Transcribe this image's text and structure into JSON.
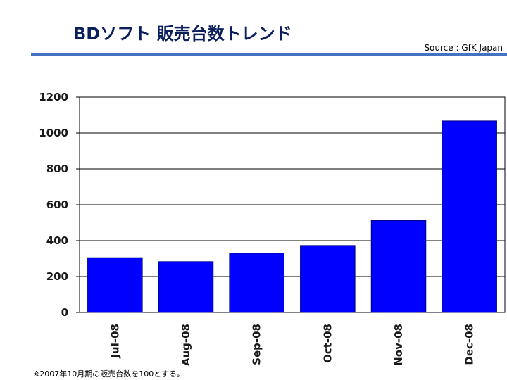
{
  "header": {
    "title": "BDソフト 販売台数トレンド",
    "source": "Source : GfK Japan"
  },
  "footnote": "※2007年10月期の販売台数を100とする。",
  "colors": {
    "bar": "#0000ff",
    "bar_stroke": "#000080",
    "rule": "#4472c4",
    "title": "#0a1f5c"
  },
  "chart_data": {
    "type": "bar",
    "title": "BDソフト 販売台数トレンド",
    "xlabel": "",
    "ylabel": "",
    "categories": [
      "Jul-08",
      "Aug-08",
      "Sep-08",
      "Oct-08",
      "Nov-08",
      "Dec-08"
    ],
    "values": [
      305,
      283,
      330,
      373,
      512,
      1067
    ],
    "ylim": [
      0,
      1200
    ],
    "yticks": [
      0,
      200,
      400,
      600,
      800,
      1000,
      1200
    ],
    "grid": true,
    "legend": "none"
  }
}
